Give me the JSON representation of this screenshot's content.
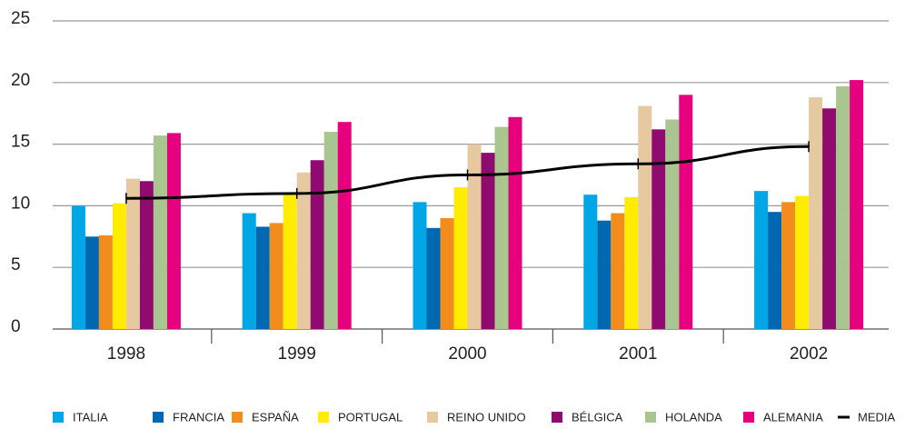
{
  "chart_data": {
    "type": "bar",
    "categories": [
      "1998",
      "1999",
      "2000",
      "2001",
      "2002"
    ],
    "series": [
      {
        "name": "ITALIA",
        "color": "#00a6e6",
        "values": [
          10.0,
          9.4,
          10.3,
          10.9,
          11.2
        ]
      },
      {
        "name": "FRANCIA",
        "color": "#0067b1",
        "values": [
          7.5,
          8.3,
          8.2,
          8.8,
          9.5
        ]
      },
      {
        "name": "ESPAÑA",
        "color": "#f28c1c",
        "values": [
          7.6,
          8.6,
          9.0,
          9.4,
          10.3
        ]
      },
      {
        "name": "PORTUGAL",
        "color": "#ffec00",
        "values": [
          10.2,
          10.9,
          11.5,
          10.7,
          10.8
        ]
      },
      {
        "name": "REINO UNIDO",
        "color": "#e6c9a0",
        "values": [
          12.2,
          12.7,
          15.0,
          18.1,
          18.8
        ]
      },
      {
        "name": "BÉLGICA",
        "color": "#8f0b6f",
        "values": [
          12.0,
          13.7,
          14.3,
          16.2,
          17.9
        ]
      },
      {
        "name": "HOLANDA",
        "color": "#a9c590",
        "values": [
          15.7,
          16.0,
          16.4,
          17.0,
          19.7
        ]
      },
      {
        "name": "ALEMANIA",
        "color": "#e6007e",
        "values": [
          15.9,
          16.8,
          17.2,
          19.0,
          20.2
        ]
      },
      {
        "name": "MEDIA",
        "color": "#000000",
        "type": "line",
        "values": [
          10.6,
          11.0,
          12.5,
          13.4,
          14.8
        ]
      }
    ],
    "ylim": [
      0,
      25
    ],
    "yticks": [
      0,
      5,
      10,
      15,
      20,
      25
    ],
    "grid": true,
    "legend": "bottom"
  }
}
